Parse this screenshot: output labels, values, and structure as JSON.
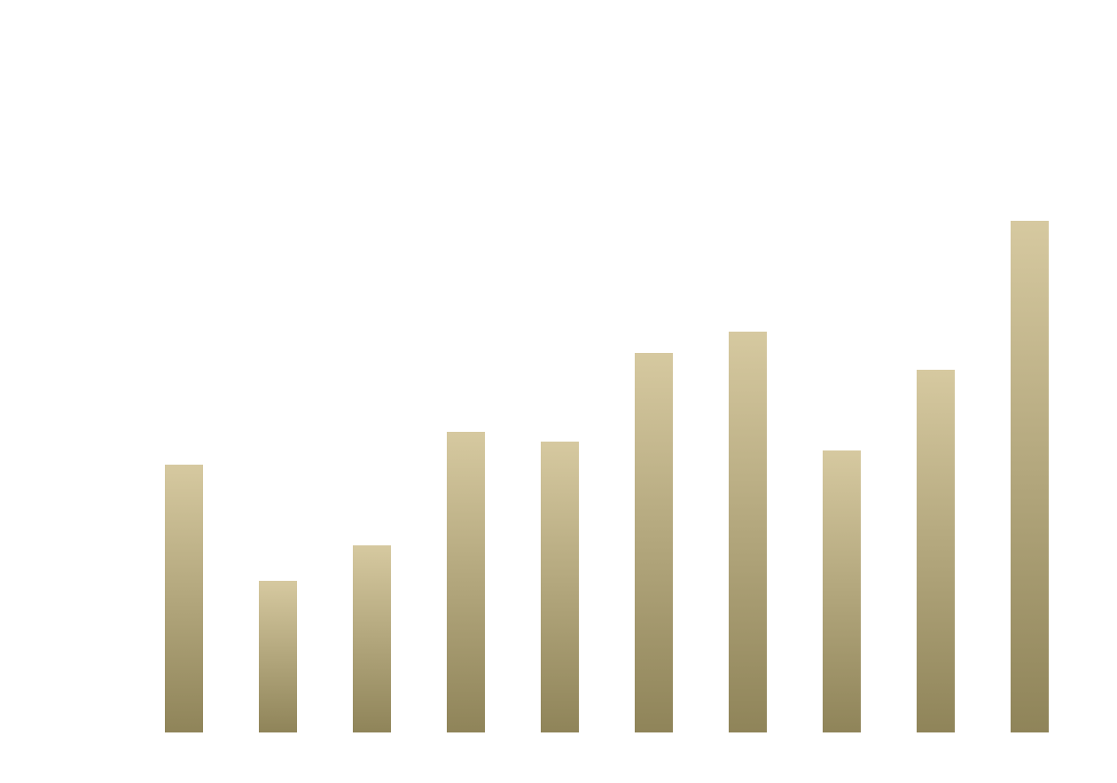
{
  "chart_data": {
    "type": "bar",
    "categories": [
      null,
      null,
      null,
      null,
      null,
      null,
      null,
      null,
      null,
      null
    ],
    "values": [
      302,
      171,
      211,
      339,
      328,
      428,
      452,
      318,
      409,
      577
    ],
    "ylim": [
      0,
      600
    ],
    "gradient": [
      "#d6c9a0",
      "#8f8459"
    ]
  }
}
